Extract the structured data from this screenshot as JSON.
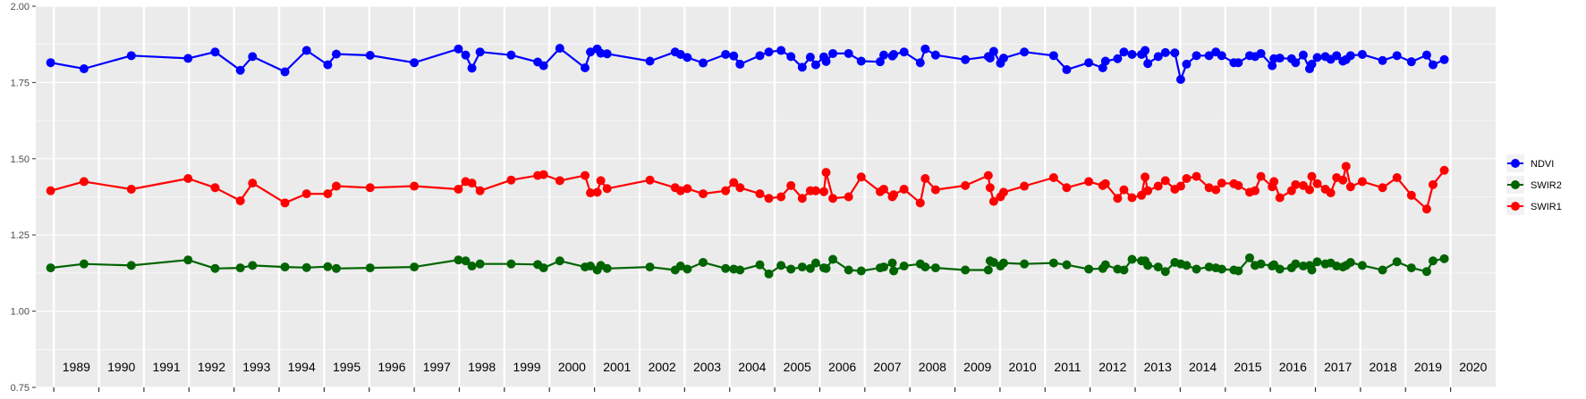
{
  "chart_data": {
    "type": "line",
    "title": "",
    "xlabel": "",
    "ylabel": "",
    "ylim": [
      0.75,
      2.0
    ],
    "xlim": [
      1988.6,
      2021.0
    ],
    "y_ticks": [
      "0.75",
      "1.00",
      "1.25",
      "1.50",
      "1.75",
      "2.00"
    ],
    "y_tick_values": [
      0.75,
      1.0,
      1.25,
      1.5,
      1.75,
      2.0
    ],
    "x_ticks": [
      "1989",
      "1990",
      "1991",
      "1992",
      "1993",
      "1994",
      "1995",
      "1996",
      "1997",
      "1998",
      "1999",
      "2000",
      "2001",
      "2002",
      "2003",
      "2004",
      "2005",
      "2006",
      "2007",
      "2008",
      "2009",
      "2010",
      "2011",
      "2012",
      "2013",
      "2014",
      "2015",
      "2016",
      "2017",
      "2018",
      "2019",
      "2020"
    ],
    "grid": true,
    "background": "#ebebeb",
    "legend_position": "right",
    "legend_order": [
      "NDVI",
      "SWIR2",
      "SWIR1"
    ],
    "series": [
      {
        "name": "NDVI",
        "color": "#0000ff",
        "x": [
          1988.93,
          1989.67,
          1990.72,
          1991.98,
          1992.58,
          1993.14,
          1993.41,
          1994.13,
          1994.61,
          1995.08,
          1995.27,
          1996.02,
          1997.0,
          1997.98,
          1998.14,
          1998.28,
          1998.46,
          1999.15,
          1999.74,
          1999.87,
          2000.23,
          2000.79,
          2000.91,
          2001.06,
          2001.14,
          2001.28,
          2002.23,
          2002.79,
          2002.91,
          2003.06,
          2003.41,
          2003.91,
          2004.09,
          2004.23,
          2004.67,
          2004.87,
          2005.14,
          2005.36,
          2005.61,
          2005.79,
          2005.91,
          2006.09,
          2006.14,
          2006.29,
          2006.64,
          2006.92,
          2007.34,
          2007.42,
          2007.61,
          2007.64,
          2007.87,
          2008.23,
          2008.34,
          2008.57,
          2009.23,
          2009.74,
          2009.78,
          2009.86,
          2010.01,
          2010.08,
          2010.54,
          2011.19,
          2011.48,
          2011.97,
          2012.28,
          2012.34,
          2012.61,
          2012.75,
          2012.93,
          2013.14,
          2013.22,
          2013.28,
          2013.51,
          2013.67,
          2013.88,
          2014.01,
          2014.14,
          2014.36,
          2014.64,
          2014.79,
          2014.92,
          2015.19,
          2015.29,
          2015.54,
          2015.66,
          2015.79,
          2016.04,
          2016.08,
          2016.21,
          2016.47,
          2016.56,
          2016.73,
          2016.87,
          2016.92,
          2017.04,
          2017.22,
          2017.34,
          2017.47,
          2017.61,
          2017.68,
          2017.78,
          2018.04,
          2018.49,
          2018.81,
          2019.13,
          2019.47,
          2019.61,
          2019.86
        ],
        "y": [
          1.815,
          1.795,
          1.838,
          1.829,
          1.85,
          1.79,
          1.835,
          1.785,
          1.855,
          1.808,
          1.843,
          1.839,
          1.815,
          1.86,
          1.84,
          1.797,
          1.85,
          1.84,
          1.817,
          1.805,
          1.862,
          1.798,
          1.85,
          1.86,
          1.846,
          1.844,
          1.82,
          1.85,
          1.842,
          1.832,
          1.814,
          1.842,
          1.837,
          1.81,
          1.838,
          1.85,
          1.855,
          1.835,
          1.8,
          1.833,
          1.808,
          1.834,
          1.819,
          1.845,
          1.845,
          1.82,
          1.818,
          1.84,
          1.837,
          1.842,
          1.85,
          1.815,
          1.86,
          1.84,
          1.825,
          1.835,
          1.83,
          1.852,
          1.813,
          1.83,
          1.85,
          1.838,
          1.792,
          1.815,
          1.798,
          1.82,
          1.828,
          1.85,
          1.842,
          1.842,
          1.855,
          1.812,
          1.835,
          1.848,
          1.847,
          1.76,
          1.81,
          1.838,
          1.838,
          1.85,
          1.838,
          1.815,
          1.815,
          1.838,
          1.835,
          1.845,
          1.805,
          1.828,
          1.83,
          1.828,
          1.815,
          1.84,
          1.795,
          1.81,
          1.832,
          1.835,
          1.826,
          1.838,
          1.82,
          1.825,
          1.838,
          1.842,
          1.822,
          1.838,
          1.818,
          1.84,
          1.808,
          1.825
        ]
      },
      {
        "name": "SWIR2",
        "color": "#006400",
        "x": [
          1988.93,
          1989.67,
          1990.72,
          1991.98,
          1992.58,
          1993.14,
          1993.41,
          1994.13,
          1994.61,
          1995.08,
          1995.27,
          1996.02,
          1997.0,
          1997.98,
          1998.14,
          1998.28,
          1998.46,
          1999.15,
          1999.74,
          1999.87,
          2000.23,
          2000.79,
          2000.91,
          2001.06,
          2001.14,
          2001.28,
          2002.23,
          2002.79,
          2002.91,
          2003.06,
          2003.41,
          2003.91,
          2004.09,
          2004.23,
          2004.67,
          2004.87,
          2005.14,
          2005.36,
          2005.61,
          2005.79,
          2005.91,
          2006.09,
          2006.14,
          2006.29,
          2006.64,
          2006.92,
          2007.34,
          2007.42,
          2007.61,
          2007.64,
          2007.87,
          2008.23,
          2008.34,
          2008.57,
          2009.23,
          2009.74,
          2009.78,
          2009.86,
          2010.01,
          2010.08,
          2010.54,
          2011.19,
          2011.48,
          2011.97,
          2012.28,
          2012.34,
          2012.61,
          2012.75,
          2012.93,
          2013.14,
          2013.22,
          2013.28,
          2013.51,
          2013.67,
          2013.88,
          2014.01,
          2014.14,
          2014.36,
          2014.64,
          2014.79,
          2014.92,
          2015.19,
          2015.29,
          2015.54,
          2015.66,
          2015.79,
          2016.04,
          2016.08,
          2016.21,
          2016.47,
          2016.56,
          2016.73,
          2016.87,
          2016.92,
          2017.04,
          2017.22,
          2017.34,
          2017.47,
          2017.61,
          2017.68,
          2017.78,
          2018.04,
          2018.49,
          2018.81,
          2019.13,
          2019.47,
          2019.61,
          2019.86
        ],
        "y": [
          1.142,
          1.155,
          1.15,
          1.168,
          1.14,
          1.142,
          1.15,
          1.145,
          1.143,
          1.146,
          1.14,
          1.142,
          1.145,
          1.168,
          1.165,
          1.148,
          1.155,
          1.155,
          1.153,
          1.142,
          1.165,
          1.145,
          1.148,
          1.135,
          1.15,
          1.14,
          1.145,
          1.135,
          1.148,
          1.138,
          1.16,
          1.14,
          1.138,
          1.135,
          1.152,
          1.122,
          1.15,
          1.138,
          1.145,
          1.14,
          1.158,
          1.142,
          1.14,
          1.17,
          1.135,
          1.132,
          1.142,
          1.145,
          1.158,
          1.132,
          1.148,
          1.155,
          1.145,
          1.142,
          1.135,
          1.135,
          1.165,
          1.16,
          1.148,
          1.158,
          1.155,
          1.158,
          1.152,
          1.138,
          1.14,
          1.152,
          1.138,
          1.135,
          1.17,
          1.165,
          1.165,
          1.15,
          1.145,
          1.13,
          1.16,
          1.155,
          1.15,
          1.138,
          1.145,
          1.142,
          1.138,
          1.135,
          1.132,
          1.175,
          1.15,
          1.155,
          1.148,
          1.152,
          1.138,
          1.142,
          1.155,
          1.148,
          1.15,
          1.135,
          1.162,
          1.155,
          1.158,
          1.148,
          1.145,
          1.15,
          1.16,
          1.15,
          1.135,
          1.162,
          1.142,
          1.13,
          1.165,
          1.172
        ]
      },
      {
        "name": "SWIR1",
        "color": "#ff0000",
        "x": [
          1988.93,
          1989.67,
          1990.72,
          1991.98,
          1992.58,
          1993.14,
          1993.41,
          1994.13,
          1994.61,
          1995.08,
          1995.27,
          1996.02,
          1997.0,
          1997.98,
          1998.14,
          1998.28,
          1998.46,
          1999.15,
          1999.74,
          1999.87,
          2000.23,
          2000.79,
          2000.91,
          2001.06,
          2001.14,
          2001.28,
          2002.23,
          2002.79,
          2002.91,
          2003.06,
          2003.41,
          2003.91,
          2004.09,
          2004.23,
          2004.67,
          2004.87,
          2005.14,
          2005.36,
          2005.61,
          2005.79,
          2005.91,
          2006.09,
          2006.14,
          2006.29,
          2006.64,
          2006.92,
          2007.34,
          2007.42,
          2007.61,
          2007.64,
          2007.87,
          2008.23,
          2008.34,
          2008.57,
          2009.23,
          2009.74,
          2009.78,
          2009.86,
          2010.01,
          2010.08,
          2010.54,
          2011.19,
          2011.48,
          2011.97,
          2012.28,
          2012.34,
          2012.61,
          2012.75,
          2012.93,
          2013.14,
          2013.22,
          2013.28,
          2013.51,
          2013.67,
          2013.88,
          2014.01,
          2014.14,
          2014.36,
          2014.64,
          2014.79,
          2014.92,
          2015.19,
          2015.29,
          2015.54,
          2015.66,
          2015.79,
          2016.04,
          2016.08,
          2016.21,
          2016.47,
          2016.56,
          2016.73,
          2016.87,
          2016.92,
          2017.04,
          2017.22,
          2017.34,
          2017.47,
          2017.61,
          2017.68,
          2017.78,
          2018.04,
          2018.49,
          2018.81,
          2019.13,
          2019.47,
          2019.61,
          2019.86
        ],
        "y": [
          1.395,
          1.425,
          1.4,
          1.435,
          1.405,
          1.362,
          1.42,
          1.355,
          1.385,
          1.385,
          1.41,
          1.405,
          1.41,
          1.4,
          1.425,
          1.42,
          1.395,
          1.43,
          1.445,
          1.448,
          1.428,
          1.445,
          1.388,
          1.39,
          1.428,
          1.402,
          1.43,
          1.405,
          1.395,
          1.402,
          1.385,
          1.395,
          1.422,
          1.405,
          1.385,
          1.37,
          1.375,
          1.412,
          1.37,
          1.395,
          1.395,
          1.392,
          1.455,
          1.37,
          1.375,
          1.44,
          1.392,
          1.4,
          1.375,
          1.382,
          1.4,
          1.355,
          1.435,
          1.398,
          1.412,
          1.445,
          1.405,
          1.36,
          1.375,
          1.39,
          1.41,
          1.438,
          1.405,
          1.425,
          1.412,
          1.418,
          1.37,
          1.398,
          1.372,
          1.38,
          1.44,
          1.395,
          1.41,
          1.428,
          1.4,
          1.41,
          1.435,
          1.442,
          1.405,
          1.398,
          1.42,
          1.418,
          1.412,
          1.39,
          1.395,
          1.442,
          1.408,
          1.425,
          1.372,
          1.395,
          1.415,
          1.412,
          1.398,
          1.442,
          1.418,
          1.4,
          1.388,
          1.438,
          1.43,
          1.475,
          1.408,
          1.425,
          1.405,
          1.438,
          1.38,
          1.335,
          1.415,
          1.462
        ]
      }
    ]
  }
}
